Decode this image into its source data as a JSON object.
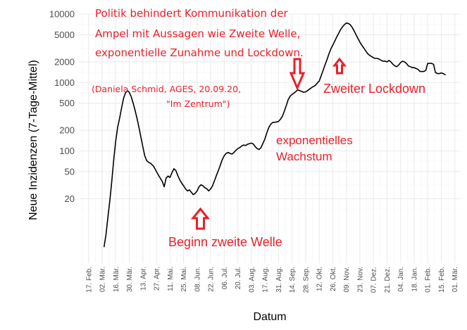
{
  "chart_data": {
    "type": "line",
    "ylabel": "Neue Inzidenzen (7-Tage-Mittel)",
    "xlabel": "Datum",
    "y_scale": "log",
    "y_ticks": [
      20,
      50,
      100,
      200,
      500,
      1000,
      2000,
      5000,
      10000
    ],
    "y_tick_labels": [
      "20",
      "50",
      "100",
      "200",
      "500",
      "1000",
      "2000",
      "5000",
      "10000"
    ],
    "xlim": [
      "2020-02-07",
      "2021-03-07"
    ],
    "x_ticks": [
      "2020-02-17",
      "2020-03-02",
      "2020-03-16",
      "2020-03-30",
      "2020-04-13",
      "2020-04-27",
      "2020-05-11",
      "2020-05-25",
      "2020-06-08",
      "2020-06-22",
      "2020-07-06",
      "2020-07-20",
      "2020-08-03",
      "2020-08-17",
      "2020-08-31",
      "2020-09-14",
      "2020-09-28",
      "2020-10-12",
      "2020-10-26",
      "2020-11-09",
      "2020-11-23",
      "2020-12-07",
      "2020-12-21",
      "2021-01-04",
      "2021-01-18",
      "2021-02-01",
      "2021-02-15",
      "2021-03-01"
    ],
    "x_tick_labels": [
      "17. Feb.",
      "02. Mär.",
      "16. Mär.",
      "30. Mär.",
      "13. Apr.",
      "27. Apr.",
      "11. Mai.",
      "25. Mai.",
      "08. Jun.",
      "22. Jun.",
      "06. Jul.",
      "20. Jul.",
      "03. Aug.",
      "17. Aug.",
      "31. Aug.",
      "14. Sep.",
      "28. Sep.",
      "12. Okt.",
      "26. Okt.",
      "09. Nov.",
      "23. Nov.",
      "07. Dez.",
      "21. Dez.",
      "04. Jan.",
      "18. Jan.",
      "01. Feb.",
      "15. Feb.",
      "01. Mär."
    ],
    "grid": true,
    "series": [
      {
        "line_color": "#000000",
        "points": [
          [
            "2020-03-04",
            4
          ],
          [
            "2020-03-06",
            6
          ],
          [
            "2020-03-08",
            11
          ],
          [
            "2020-03-10",
            19
          ],
          [
            "2020-03-12",
            37
          ],
          [
            "2020-03-14",
            75
          ],
          [
            "2020-03-16",
            140
          ],
          [
            "2020-03-18",
            220
          ],
          [
            "2020-03-20",
            300
          ],
          [
            "2020-03-22",
            420
          ],
          [
            "2020-03-24",
            580
          ],
          [
            "2020-03-26",
            700
          ],
          [
            "2020-03-28",
            760
          ],
          [
            "2020-03-30",
            720
          ],
          [
            "2020-04-01",
            620
          ],
          [
            "2020-04-03",
            500
          ],
          [
            "2020-04-05",
            390
          ],
          [
            "2020-04-07",
            300
          ],
          [
            "2020-04-09",
            220
          ],
          [
            "2020-04-11",
            160
          ],
          [
            "2020-04-13",
            115
          ],
          [
            "2020-04-15",
            85
          ],
          [
            "2020-04-17",
            72
          ],
          [
            "2020-04-19",
            68
          ],
          [
            "2020-04-21",
            66
          ],
          [
            "2020-04-24",
            60
          ],
          [
            "2020-04-27",
            50
          ],
          [
            "2020-04-30",
            42
          ],
          [
            "2020-05-03",
            36
          ],
          [
            "2020-05-05",
            30
          ],
          [
            "2020-05-07",
            40
          ],
          [
            "2020-05-09",
            43
          ],
          [
            "2020-05-11",
            41
          ],
          [
            "2020-05-13",
            48
          ],
          [
            "2020-05-15",
            55
          ],
          [
            "2020-05-17",
            52
          ],
          [
            "2020-05-19",
            44
          ],
          [
            "2020-05-21",
            38
          ],
          [
            "2020-05-23",
            34
          ],
          [
            "2020-05-25",
            31
          ],
          [
            "2020-05-27",
            28
          ],
          [
            "2020-05-29",
            26
          ],
          [
            "2020-05-31",
            27
          ],
          [
            "2020-06-02",
            25
          ],
          [
            "2020-06-04",
            23
          ],
          [
            "2020-06-06",
            24
          ],
          [
            "2020-06-08",
            26
          ],
          [
            "2020-06-10",
            30
          ],
          [
            "2020-06-12",
            32
          ],
          [
            "2020-06-14",
            31
          ],
          [
            "2020-06-16",
            29
          ],
          [
            "2020-06-18",
            28
          ],
          [
            "2020-06-20",
            26
          ],
          [
            "2020-06-22",
            28
          ],
          [
            "2020-06-24",
            31
          ],
          [
            "2020-06-26",
            37
          ],
          [
            "2020-06-28",
            44
          ],
          [
            "2020-06-30",
            52
          ],
          [
            "2020-07-02",
            62
          ],
          [
            "2020-07-04",
            75
          ],
          [
            "2020-07-06",
            85
          ],
          [
            "2020-07-08",
            92
          ],
          [
            "2020-07-10",
            95
          ],
          [
            "2020-07-12",
            92
          ],
          [
            "2020-07-14",
            90
          ],
          [
            "2020-07-16",
            95
          ],
          [
            "2020-07-18",
            102
          ],
          [
            "2020-07-20",
            108
          ],
          [
            "2020-07-22",
            112
          ],
          [
            "2020-07-24",
            118
          ],
          [
            "2020-07-26",
            122
          ],
          [
            "2020-07-28",
            120
          ],
          [
            "2020-07-30",
            125
          ],
          [
            "2020-08-01",
            128
          ],
          [
            "2020-08-03",
            130
          ],
          [
            "2020-08-05",
            126
          ],
          [
            "2020-08-07",
            115
          ],
          [
            "2020-08-09",
            108
          ],
          [
            "2020-08-11",
            105
          ],
          [
            "2020-08-13",
            112
          ],
          [
            "2020-08-15",
            130
          ],
          [
            "2020-08-17",
            150
          ],
          [
            "2020-08-19",
            185
          ],
          [
            "2020-08-21",
            220
          ],
          [
            "2020-08-23",
            245
          ],
          [
            "2020-08-25",
            260
          ],
          [
            "2020-08-27",
            262
          ],
          [
            "2020-08-29",
            265
          ],
          [
            "2020-08-31",
            270
          ],
          [
            "2020-09-02",
            290
          ],
          [
            "2020-09-04",
            320
          ],
          [
            "2020-09-06",
            380
          ],
          [
            "2020-09-08",
            460
          ],
          [
            "2020-09-10",
            560
          ],
          [
            "2020-09-12",
            630
          ],
          [
            "2020-09-14",
            670
          ],
          [
            "2020-09-16",
            700
          ],
          [
            "2020-09-18",
            740
          ],
          [
            "2020-09-20",
            780
          ],
          [
            "2020-09-22",
            760
          ],
          [
            "2020-09-24",
            740
          ],
          [
            "2020-09-26",
            720
          ],
          [
            "2020-09-28",
            730
          ],
          [
            "2020-09-30",
            760
          ],
          [
            "2020-10-02",
            800
          ],
          [
            "2020-10-04",
            840
          ],
          [
            "2020-10-06",
            870
          ],
          [
            "2020-10-08",
            910
          ],
          [
            "2020-10-10",
            980
          ],
          [
            "2020-10-12",
            1050
          ],
          [
            "2020-10-14",
            1250
          ],
          [
            "2020-10-16",
            1500
          ],
          [
            "2020-10-18",
            1800
          ],
          [
            "2020-10-20",
            2150
          ],
          [
            "2020-10-22",
            2600
          ],
          [
            "2020-10-24",
            3100
          ],
          [
            "2020-10-26",
            3500
          ],
          [
            "2020-10-28",
            4000
          ],
          [
            "2020-10-30",
            4600
          ],
          [
            "2020-11-01",
            5200
          ],
          [
            "2020-11-03",
            5900
          ],
          [
            "2020-11-05",
            6500
          ],
          [
            "2020-11-07",
            7000
          ],
          [
            "2020-11-09",
            7400
          ],
          [
            "2020-11-11",
            7300
          ],
          [
            "2020-11-13",
            7000
          ],
          [
            "2020-11-15",
            6400
          ],
          [
            "2020-11-17",
            5700
          ],
          [
            "2020-11-19",
            5000
          ],
          [
            "2020-11-21",
            4400
          ],
          [
            "2020-11-23",
            3900
          ],
          [
            "2020-11-25",
            3500
          ],
          [
            "2020-11-27",
            3200
          ],
          [
            "2020-11-29",
            2900
          ],
          [
            "2020-12-01",
            2650
          ],
          [
            "2020-12-03",
            2500
          ],
          [
            "2020-12-05",
            2400
          ],
          [
            "2020-12-07",
            2300
          ],
          [
            "2020-12-09",
            2250
          ],
          [
            "2020-12-11",
            2250
          ],
          [
            "2020-12-13",
            2200
          ],
          [
            "2020-12-15",
            2100
          ],
          [
            "2020-12-17",
            2050
          ],
          [
            "2020-12-19",
            2050
          ],
          [
            "2020-12-21",
            2000
          ],
          [
            "2020-12-23",
            2100
          ],
          [
            "2020-12-25",
            2000
          ],
          [
            "2020-12-27",
            1850
          ],
          [
            "2020-12-29",
            1750
          ],
          [
            "2020-12-31",
            1700
          ],
          [
            "2021-01-02",
            1800
          ],
          [
            "2021-01-04",
            1950
          ],
          [
            "2021-01-06",
            2050
          ],
          [
            "2021-01-08",
            2000
          ],
          [
            "2021-01-10",
            1900
          ],
          [
            "2021-01-12",
            1750
          ],
          [
            "2021-01-14",
            1700
          ],
          [
            "2021-01-16",
            1650
          ],
          [
            "2021-01-18",
            1650
          ],
          [
            "2021-01-20",
            1600
          ],
          [
            "2021-01-22",
            1550
          ],
          [
            "2021-01-24",
            1450
          ],
          [
            "2021-01-26",
            1450
          ],
          [
            "2021-01-28",
            1450
          ],
          [
            "2021-01-30",
            1500
          ],
          [
            "2021-02-01",
            1900
          ],
          [
            "2021-02-03",
            1900
          ],
          [
            "2021-02-05",
            1900
          ],
          [
            "2021-02-07",
            1850
          ],
          [
            "2021-02-09",
            1400
          ],
          [
            "2021-02-11",
            1350
          ],
          [
            "2021-02-13",
            1350
          ],
          [
            "2021-02-15",
            1380
          ],
          [
            "2021-02-17",
            1350
          ],
          [
            "2021-02-19",
            1300
          ]
        ]
      }
    ],
    "annotations": {
      "quote_lines": [
        "Politik behindert Kommunikation der",
        "Ampel mit Aussagen wie Zweite Welle,",
        "exponentielle Zunahme und Lockdown."
      ],
      "source_lines": [
        "(Daniela Schmid, AGES, 20.09.20,",
        "\"Im Zentrum\")"
      ],
      "second_lockdown": "Zweiter Lockdown",
      "exponential_lines": [
        "exponentielles",
        "Wachstum"
      ],
      "second_wave_start": "Beginn zweite Welle",
      "annotation_color": "#e8202a"
    }
  }
}
